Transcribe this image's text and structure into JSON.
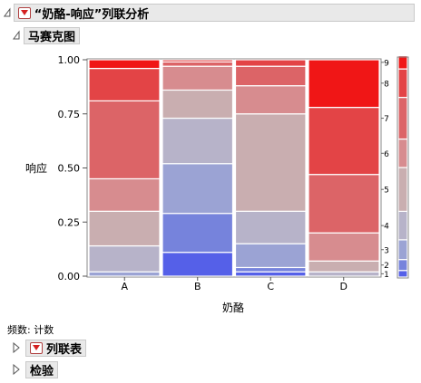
{
  "report": {
    "title": "“奶酪-响应”列联分析",
    "mosaic_title": "马赛克图",
    "freq_label": "频数: 计数",
    "contingency_title": "列联表",
    "tests_title": "检验"
  },
  "chart_data": {
    "type": "mosaic",
    "xlabel": "奶酪",
    "ylabel": "响应",
    "ylim": [
      0,
      1
    ],
    "y_ticks": [
      "0.00",
      "0.25",
      "0.50",
      "0.75",
      "1.00"
    ],
    "categories": [
      "A",
      "B",
      "C",
      "D"
    ],
    "column_widths": [
      0.25,
      0.25,
      0.25,
      0.25
    ],
    "response_levels": [
      "1",
      "2",
      "3",
      "4",
      "5",
      "6",
      "7",
      "8",
      "9"
    ],
    "level_colors": [
      "#5560e8",
      "#7683dc",
      "#9ba3d4",
      "#b7b3c9",
      "#c9aeb0",
      "#d78c8f",
      "#dc6467",
      "#e34446",
      "#f01616"
    ],
    "columns": [
      {
        "category": "A",
        "proportions": [
          0.0,
          0.0,
          0.02,
          0.12,
          0.16,
          0.15,
          0.36,
          0.15,
          0.04
        ]
      },
      {
        "category": "B",
        "proportions": [
          0.11,
          0.18,
          0.23,
          0.21,
          0.13,
          0.11,
          0.02,
          0.01,
          0.0
        ]
      },
      {
        "category": "C",
        "proportions": [
          0.02,
          0.02,
          0.11,
          0.15,
          0.45,
          0.13,
          0.09,
          0.03,
          0.0
        ]
      },
      {
        "category": "D",
        "proportions": [
          0.0,
          0.0,
          0.0,
          0.02,
          0.05,
          0.13,
          0.27,
          0.31,
          0.22
        ]
      }
    ],
    "overall_proportions": [
      0.03,
      0.05,
      0.09,
      0.13,
      0.2,
      0.13,
      0.19,
      0.13,
      0.06
    ]
  }
}
